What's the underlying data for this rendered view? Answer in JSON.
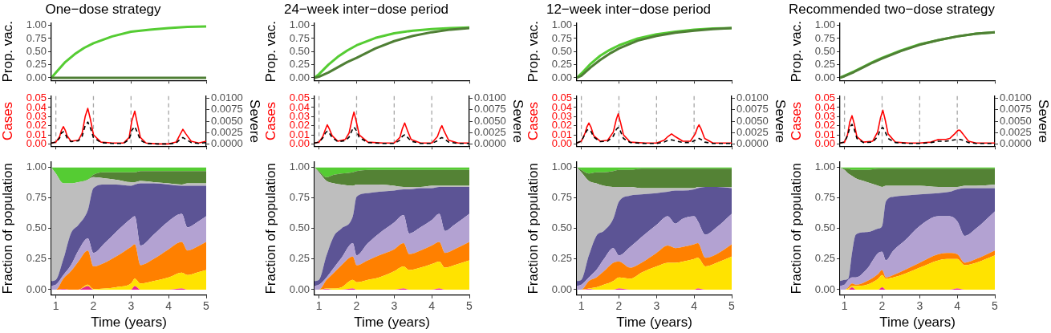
{
  "chart_data": [
    {
      "type": "line",
      "title": "One−dose strategy",
      "ylabel": "Prop. vac.",
      "x": [
        0.88,
        1,
        1.25,
        1.5,
        1.75,
        2,
        2.5,
        3,
        3.5,
        4,
        4.5,
        5
      ],
      "xlim": [
        0.88,
        5
      ],
      "xticks": [
        1,
        2,
        3,
        4,
        5
      ],
      "ylim": [
        -0.05,
        1.05
      ],
      "yticks": [
        {
          "value": 0,
          "label": "0.00"
        },
        {
          "value": 0.25,
          "label": "0.25"
        },
        {
          "value": 0.5,
          "label": "0.50"
        },
        {
          "value": 0.75,
          "label": "0.75"
        },
        {
          "value": 1,
          "label": "1.00"
        }
      ],
      "tick_labels": "y",
      "series": [
        {
          "color": "#55cc33",
          "values": [
            0,
            0.1,
            0.3,
            0.45,
            0.57,
            0.66,
            0.79,
            0.88,
            0.92,
            0.95,
            0.97,
            0.98
          ]
        },
        {
          "color": "#4f7f35",
          "values": [
            0,
            0,
            0,
            0,
            0,
            0,
            0,
            0,
            0,
            0,
            0,
            0
          ]
        }
      ]
    },
    {
      "type": "line",
      "title": "24−week inter−dose period",
      "ylabel": "Prop. vac.",
      "x": [
        0.88,
        1,
        1.25,
        1.5,
        1.75,
        2,
        2.5,
        3,
        3.5,
        4,
        4.5,
        5
      ],
      "xlim": [
        0.88,
        5
      ],
      "xticks": [
        1,
        2,
        3,
        4,
        5
      ],
      "ylim": [
        -0.05,
        1.05
      ],
      "yticks": [
        {
          "value": 0,
          "label": "0.00"
        },
        {
          "value": 0.25,
          "label": "0.25"
        },
        {
          "value": 0.5,
          "label": "0.50"
        },
        {
          "value": 0.75,
          "label": "0.75"
        },
        {
          "value": 1,
          "label": "1.00"
        }
      ],
      "tick_labels": "y",
      "series": [
        {
          "color": "#55cc33",
          "values": [
            0,
            0.07,
            0.25,
            0.4,
            0.52,
            0.62,
            0.76,
            0.85,
            0.9,
            0.93,
            0.95,
            0.96
          ]
        },
        {
          "color": "#4f7f35",
          "values": [
            0,
            0.02,
            0.1,
            0.2,
            0.3,
            0.38,
            0.56,
            0.7,
            0.8,
            0.87,
            0.92,
            0.95
          ]
        }
      ]
    },
    {
      "type": "line",
      "title": "12−week inter−dose period",
      "ylabel": "Prop. vac.",
      "x": [
        0.88,
        1,
        1.25,
        1.5,
        1.75,
        2,
        2.5,
        3,
        3.5,
        4,
        4.5,
        5
      ],
      "xlim": [
        0.88,
        5
      ],
      "xticks": [
        1,
        2,
        3,
        4,
        5
      ],
      "ylim": [
        -0.05,
        1.05
      ],
      "yticks": [
        {
          "value": 0,
          "label": "0.00"
        },
        {
          "value": 0.25,
          "label": "0.25"
        },
        {
          "value": 0.5,
          "label": "0.50"
        },
        {
          "value": 0.75,
          "label": "0.75"
        },
        {
          "value": 1,
          "label": "1.00"
        }
      ],
      "tick_labels": "y",
      "series": [
        {
          "color": "#55cc33",
          "values": [
            0,
            0.08,
            0.27,
            0.42,
            0.53,
            0.62,
            0.75,
            0.83,
            0.88,
            0.92,
            0.94,
            0.95
          ]
        },
        {
          "color": "#4f7f35",
          "values": [
            0,
            0.04,
            0.2,
            0.34,
            0.46,
            0.56,
            0.71,
            0.8,
            0.86,
            0.9,
            0.93,
            0.95
          ]
        }
      ]
    },
    {
      "type": "line",
      "title": "Recommended two−dose strategy",
      "ylabel": "Prop. vac.",
      "x": [
        0.88,
        1,
        1.25,
        1.5,
        1.75,
        2,
        2.5,
        3,
        3.5,
        4,
        4.5,
        5
      ],
      "xlim": [
        0.88,
        5
      ],
      "xticks": [
        1,
        2,
        3,
        4,
        5
      ],
      "ylim": [
        -0.05,
        1.05
      ],
      "yticks": [
        {
          "value": 0,
          "label": "0.00"
        },
        {
          "value": 0.25,
          "label": "0.25"
        },
        {
          "value": 0.5,
          "label": "0.50"
        },
        {
          "value": 0.75,
          "label": "0.75"
        },
        {
          "value": 1,
          "label": "1.00"
        }
      ],
      "tick_labels": "y",
      "series": [
        {
          "color": "#55cc33",
          "values": [
            0,
            0.04,
            0.12,
            0.21,
            0.3,
            0.38,
            0.52,
            0.64,
            0.72,
            0.79,
            0.84,
            0.87
          ]
        },
        {
          "color": "#4f7f35",
          "values": [
            0,
            0.03,
            0.11,
            0.2,
            0.29,
            0.37,
            0.51,
            0.63,
            0.72,
            0.79,
            0.84,
            0.87
          ]
        }
      ]
    },
    {
      "type": "line",
      "ylabel": "Cases",
      "y2label": "Severe",
      "xlim": [
        0.88,
        5
      ],
      "xticks": [
        1,
        2,
        3,
        4,
        5
      ],
      "ylim": [
        -0.0025,
        0.0525
      ],
      "yticks": [
        {
          "value": 0,
          "label": "0.00"
        },
        {
          "value": 0.01,
          "label": "0.01"
        },
        {
          "value": 0.02,
          "label": "0.02"
        },
        {
          "value": 0.03,
          "label": "0.03"
        },
        {
          "value": 0.04,
          "label": "0.04"
        },
        {
          "value": 0.05,
          "label": "0.05"
        }
      ],
      "y2lim": [
        -0.0005,
        0.0105
      ],
      "y2ticks": [
        {
          "value": 0,
          "label": "0.0000"
        },
        {
          "value": 0.0025,
          "label": "0.0025"
        },
        {
          "value": 0.005,
          "label": "0.0050"
        },
        {
          "value": 0.0075,
          "label": "0.0075"
        },
        {
          "value": 0.01,
          "label": "0.0100"
        }
      ],
      "tick_labels": "y",
      "ref_lines": [
        {
          "axis": "x",
          "value": 1,
          "color": "#a6a6a6",
          "line_style": "dashed"
        },
        {
          "axis": "x",
          "value": 2,
          "color": "#a6a6a6",
          "line_style": "dashed"
        },
        {
          "axis": "x",
          "value": 3,
          "color": "#a6a6a6",
          "line_style": "dashed"
        },
        {
          "axis": "x",
          "value": 4,
          "color": "#a6a6a6",
          "line_style": "dashed"
        }
      ],
      "x": [
        0.88,
        1.0,
        1.1,
        1.15,
        1.2,
        1.25,
        1.3,
        1.4,
        1.6,
        1.7,
        1.78,
        1.85,
        1.92,
        2.0,
        2.2,
        2.5,
        2.8,
        2.95,
        3.02,
        3.1,
        3.17,
        3.25,
        3.4,
        3.7,
        4.0,
        4.2,
        4.3,
        4.38,
        4.46,
        4.6,
        4.8,
        5.0
      ],
      "series": [
        {
          "color": "#ff0000",
          "values": [
            0.001,
            0.002,
            0.008,
            0.015,
            0.019,
            0.015,
            0.009,
            0.003,
            0.004,
            0.012,
            0.03,
            0.039,
            0.027,
            0.01,
            0.002,
            0.001,
            0.001,
            0.007,
            0.025,
            0.036,
            0.022,
            0.007,
            0.001,
            0,
            0,
            0.002,
            0.01,
            0.016,
            0.011,
            0.003,
            0.001,
            0.003
          ]
        },
        {
          "color": "#000000",
          "axis": "y2",
          "line_style": "dashed",
          "values": [
            0.0002,
            0.0004,
            0.0013,
            0.0024,
            0.0027,
            0.0022,
            0.0013,
            0.0005,
            0.0007,
            0.0017,
            0.004,
            0.0048,
            0.0035,
            0.0014,
            0.0003,
            0.0001,
            0.0001,
            0.001,
            0.003,
            0.0038,
            0.0025,
            0.0008,
            0.0001,
            0,
            0,
            0.0002,
            0.001,
            0.0014,
            0.001,
            0.0003,
            0.0001,
            0.0003
          ]
        }
      ]
    },
    {
      "type": "line",
      "ylabel": "Cases",
      "y2label": "Severe",
      "xlim": [
        0.88,
        5
      ],
      "xticks": [
        1,
        2,
        3,
        4,
        5
      ],
      "ylim": [
        -0.0025,
        0.0525
      ],
      "yticks": [
        {
          "value": 0,
          "label": "0.00"
        },
        {
          "value": 0.01,
          "label": "0.01"
        },
        {
          "value": 0.02,
          "label": "0.02"
        },
        {
          "value": 0.03,
          "label": "0.03"
        },
        {
          "value": 0.04,
          "label": "0.04"
        },
        {
          "value": 0.05,
          "label": "0.05"
        }
      ],
      "y2lim": [
        -0.0005,
        0.0105
      ],
      "y2ticks": [
        {
          "value": 0,
          "label": "0.0000"
        },
        {
          "value": 0.0025,
          "label": "0.0025"
        },
        {
          "value": 0.005,
          "label": "0.0050"
        },
        {
          "value": 0.0075,
          "label": "0.0075"
        },
        {
          "value": 0.01,
          "label": "0.0100"
        }
      ],
      "tick_labels": "y",
      "ref_lines": [
        {
          "axis": "x",
          "value": 1,
          "color": "#a6a6a6",
          "line_style": "dashed"
        },
        {
          "axis": "x",
          "value": 2,
          "color": "#a6a6a6",
          "line_style": "dashed"
        },
        {
          "axis": "x",
          "value": 3,
          "color": "#a6a6a6",
          "line_style": "dashed"
        },
        {
          "axis": "x",
          "value": 4,
          "color": "#a6a6a6",
          "line_style": "dashed"
        }
      ],
      "x": [
        0.88,
        1.0,
        1.1,
        1.17,
        1.22,
        1.28,
        1.35,
        1.5,
        1.7,
        1.8,
        1.88,
        1.93,
        1.99,
        2.07,
        2.3,
        2.7,
        3.0,
        3.15,
        3.22,
        3.28,
        3.35,
        3.45,
        3.7,
        4.0,
        4.15,
        4.22,
        4.27,
        4.33,
        4.45,
        4.7,
        5.0
      ],
      "series": [
        {
          "color": "#ff0000",
          "values": [
            0.001,
            0.002,
            0.008,
            0.016,
            0.021,
            0.016,
            0.009,
            0.003,
            0.005,
            0.012,
            0.027,
            0.035,
            0.025,
            0.01,
            0.002,
            0.001,
            0.001,
            0.007,
            0.017,
            0.023,
            0.015,
            0.005,
            0.001,
            0.001,
            0.008,
            0.016,
            0.02,
            0.014,
            0.004,
            0.001,
            0.001
          ]
        },
        {
          "color": "#000000",
          "axis": "y2",
          "line_style": "dashed",
          "values": [
            0.0002,
            0.0004,
            0.0013,
            0.0024,
            0.0028,
            0.0023,
            0.0014,
            0.0005,
            0.0007,
            0.0015,
            0.003,
            0.0037,
            0.003,
            0.0014,
            0.0003,
            0.0001,
            0.0001,
            0.0008,
            0.0017,
            0.002,
            0.0015,
            0.0006,
            0.0001,
            0.0001,
            0.0007,
            0.0012,
            0.0014,
            0.0011,
            0.0004,
            0.0001,
            0.0001
          ]
        }
      ]
    },
    {
      "type": "line",
      "ylabel": "Cases",
      "y2label": "Severe",
      "xlim": [
        0.88,
        5
      ],
      "xticks": [
        1,
        2,
        3,
        4,
        5
      ],
      "ylim": [
        -0.0025,
        0.0525
      ],
      "yticks": [
        {
          "value": 0,
          "label": "0.00"
        },
        {
          "value": 0.01,
          "label": "0.01"
        },
        {
          "value": 0.02,
          "label": "0.02"
        },
        {
          "value": 0.03,
          "label": "0.03"
        },
        {
          "value": 0.04,
          "label": "0.04"
        },
        {
          "value": 0.05,
          "label": "0.05"
        }
      ],
      "y2lim": [
        -0.0005,
        0.0105
      ],
      "y2ticks": [
        {
          "value": 0,
          "label": "0.0000"
        },
        {
          "value": 0.0025,
          "label": "0.0025"
        },
        {
          "value": 0.005,
          "label": "0.0050"
        },
        {
          "value": 0.0075,
          "label": "0.0075"
        },
        {
          "value": 0.01,
          "label": "0.0100"
        }
      ],
      "tick_labels": "y",
      "ref_lines": [
        {
          "axis": "x",
          "value": 1,
          "color": "#a6a6a6",
          "line_style": "dashed"
        },
        {
          "axis": "x",
          "value": 2,
          "color": "#a6a6a6",
          "line_style": "dashed"
        },
        {
          "axis": "x",
          "value": 3,
          "color": "#a6a6a6",
          "line_style": "dashed"
        },
        {
          "axis": "x",
          "value": 4,
          "color": "#a6a6a6",
          "line_style": "dashed"
        }
      ],
      "x": [
        0.88,
        1.0,
        1.1,
        1.15,
        1.2,
        1.26,
        1.33,
        1.5,
        1.7,
        1.85,
        1.93,
        1.98,
        2.04,
        2.12,
        2.3,
        2.7,
        3.0,
        3.2,
        3.3,
        3.4,
        3.5,
        3.7,
        3.9,
        4.03,
        4.09,
        4.13,
        4.18,
        4.28,
        4.5,
        4.8,
        5.0
      ],
      "series": [
        {
          "color": "#ff0000",
          "values": [
            0.001,
            0.003,
            0.012,
            0.019,
            0.023,
            0.018,
            0.009,
            0.003,
            0.004,
            0.013,
            0.027,
            0.033,
            0.024,
            0.01,
            0.002,
            0.001,
            0.001,
            0.004,
            0.008,
            0.011,
            0.008,
            0.003,
            0.003,
            0.011,
            0.018,
            0.021,
            0.017,
            0.006,
            0.001,
            0.001,
            0.001
          ]
        },
        {
          "color": "#000000",
          "axis": "y2",
          "line_style": "dashed",
          "values": [
            0.0002,
            0.0006,
            0.0022,
            0.003,
            0.0032,
            0.0027,
            0.0015,
            0.0005,
            0.0006,
            0.0017,
            0.0032,
            0.0036,
            0.0028,
            0.0012,
            0.0003,
            0.0001,
            0.0001,
            0.0004,
            0.0008,
            0.0009,
            0.0007,
            0.0003,
            0.0003,
            0.0008,
            0.0011,
            0.0012,
            0.001,
            0.0004,
            0.0001,
            0.0001,
            0.0001
          ]
        }
      ]
    },
    {
      "type": "line",
      "ylabel": "Cases",
      "y2label": "Severe",
      "xlim": [
        0.88,
        5
      ],
      "xticks": [
        1,
        2,
        3,
        4,
        5
      ],
      "ylim": [
        -0.0025,
        0.0525
      ],
      "yticks": [
        {
          "value": 0,
          "label": "0.00"
        },
        {
          "value": 0.01,
          "label": "0.01"
        },
        {
          "value": 0.02,
          "label": "0.02"
        },
        {
          "value": 0.03,
          "label": "0.03"
        },
        {
          "value": 0.04,
          "label": "0.04"
        },
        {
          "value": 0.05,
          "label": "0.05"
        }
      ],
      "y2lim": [
        -0.0005,
        0.0105
      ],
      "y2ticks": [
        {
          "value": 0,
          "label": "0.0000"
        },
        {
          "value": 0.0025,
          "label": "0.0025"
        },
        {
          "value": 0.005,
          "label": "0.0050"
        },
        {
          "value": 0.0075,
          "label": "0.0075"
        },
        {
          "value": 0.01,
          "label": "0.0100"
        }
      ],
      "tick_labels": "y",
      "ref_lines": [
        {
          "axis": "x",
          "value": 1,
          "color": "#a6a6a6",
          "line_style": "dashed"
        },
        {
          "axis": "x",
          "value": 2,
          "color": "#a6a6a6",
          "line_style": "dashed"
        },
        {
          "axis": "x",
          "value": 3,
          "color": "#a6a6a6",
          "line_style": "dashed"
        },
        {
          "axis": "x",
          "value": 4,
          "color": "#a6a6a6",
          "line_style": "dashed"
        }
      ],
      "x": [
        0.88,
        1.0,
        1.08,
        1.14,
        1.2,
        1.26,
        1.33,
        1.5,
        1.75,
        1.88,
        1.96,
        2.02,
        2.08,
        2.16,
        2.35,
        2.7,
        3.0,
        3.3,
        3.5,
        3.7,
        3.8,
        3.93,
        4.02,
        4.07,
        4.15,
        4.3,
        4.5,
        4.8,
        5.0
      ],
      "series": [
        {
          "color": "#ff0000",
          "values": [
            0.001,
            0.002,
            0.01,
            0.024,
            0.031,
            0.022,
            0.008,
            0.002,
            0.003,
            0.013,
            0.029,
            0.037,
            0.027,
            0.011,
            0.002,
            0.001,
            0.001,
            0.002,
            0.005,
            0.005,
            0.006,
            0.011,
            0.015,
            0.015,
            0.011,
            0.003,
            0.001,
            0.001,
            0.001
          ]
        },
        {
          "color": "#000000",
          "axis": "y2",
          "line_style": "dashed",
          "values": [
            0.0002,
            0.0004,
            0.0018,
            0.0036,
            0.0043,
            0.0032,
            0.0012,
            0.0003,
            0.0004,
            0.0016,
            0.0033,
            0.0036,
            0.0027,
            0.0012,
            0.0003,
            0.0001,
            0.0001,
            0.0003,
            0.0006,
            0.0006,
            0.0007,
            0.0009,
            0.001,
            0.001,
            0.0008,
            0.0003,
            0.0001,
            0.0001,
            0.0001
          ]
        }
      ]
    },
    {
      "type": "area",
      "stacked": true,
      "xlabel": "Time (years)",
      "ylabel": "Fraction of population",
      "xlim": [
        0.88,
        5
      ],
      "xticks": [
        1,
        2,
        3,
        4,
        5
      ],
      "ylim": [
        -0.045,
        1.045
      ],
      "yticks": [
        {
          "value": 0,
          "label": "0.00"
        },
        {
          "value": 0.25,
          "label": "0.25"
        },
        {
          "value": 0.5,
          "label": "0.50"
        },
        {
          "value": 0.75,
          "label": "0.75"
        },
        {
          "value": 1,
          "label": "1.00"
        }
      ],
      "x": [
        0.88,
        1.0,
        1.2,
        1.4,
        1.6,
        1.85,
        2.0,
        2.3,
        2.6,
        3.0,
        3.1,
        3.25,
        3.6,
        4.0,
        4.35,
        4.5,
        4.75,
        5.0
      ],
      "series": [
        {
          "color": "#e7298a",
          "values": [
            0,
            0,
            0.005,
            0,
            0,
            0.03,
            0,
            0,
            0,
            0,
            0.03,
            0,
            0,
            0,
            0.01,
            0,
            0,
            0
          ]
        },
        {
          "color": "#ffe300",
          "values": [
            0,
            0,
            0,
            0,
            0,
            0.01,
            0.005,
            0.01,
            0.02,
            0.05,
            0.06,
            0.05,
            0.07,
            0.1,
            0.13,
            0.12,
            0.14,
            0.16
          ]
        },
        {
          "color": "#ff8000",
          "values": [
            0,
            0,
            0.085,
            0.15,
            0.23,
            0.28,
            0.185,
            0.21,
            0.25,
            0.3,
            0.28,
            0.15,
            0.18,
            0.23,
            0.25,
            0.2,
            0.21,
            0.23
          ]
        },
        {
          "color": "#b3a2d2",
          "values": [
            0.03,
            0.04,
            0.03,
            0.05,
            0.09,
            0.1,
            0.11,
            0.16,
            0.2,
            0.23,
            0.23,
            0.16,
            0.2,
            0.23,
            0.23,
            0.19,
            0.2,
            0.21
          ]
        },
        {
          "color": "#5c5495",
          "values": [
            0.04,
            0.04,
            0.13,
            0.26,
            0.21,
            0.23,
            0.53,
            0.48,
            0.39,
            0.27,
            0.26,
            0.51,
            0.42,
            0.3,
            0.23,
            0.34,
            0.3,
            0.25
          ]
        },
        {
          "color": "#bebebe",
          "values": [
            0.93,
            0.87,
            0.62,
            0.41,
            0.35,
            0.25,
            0.09,
            0.05,
            0.04,
            0.03,
            0.02,
            0.02,
            0.01,
            0.01,
            0.01,
            0.02,
            0.02,
            0.02
          ]
        },
        {
          "color": "#548235",
          "values": [
            0,
            0,
            0,
            0,
            0,
            0,
            0.02,
            0.05,
            0.06,
            0.08,
            0.08,
            0.08,
            0.09,
            0.1,
            0.11,
            0.1,
            0.1,
            0.1
          ]
        },
        {
          "color": "#55cc33",
          "values": [
            0,
            0.05,
            0.13,
            0.13,
            0.12,
            0.1,
            0.06,
            0.04,
            0.04,
            0.04,
            0.04,
            0.03,
            0.03,
            0.03,
            0.03,
            0.03,
            0.03,
            0.03
          ]
        }
      ]
    },
    {
      "type": "area",
      "stacked": true,
      "xlabel": "Time (years)",
      "ylabel": "Fraction of population",
      "xlim": [
        0.88,
        5
      ],
      "xticks": [
        1,
        2,
        3,
        4,
        5
      ],
      "ylim": [
        -0.045,
        1.045
      ],
      "yticks": [
        {
          "value": 0,
          "label": "0.00"
        },
        {
          "value": 0.25,
          "label": "0.25"
        },
        {
          "value": 0.5,
          "label": "0.50"
        },
        {
          "value": 0.75,
          "label": "0.75"
        },
        {
          "value": 1,
          "label": "1.00"
        }
      ],
      "x": [
        0.88,
        1.0,
        1.2,
        1.4,
        1.6,
        1.9,
        2.0,
        2.3,
        2.6,
        3.0,
        3.25,
        3.4,
        3.7,
        4.0,
        4.2,
        4.35,
        4.6,
        5.0
      ],
      "series": [
        {
          "color": "#e7298a",
          "values": [
            0,
            0,
            0.005,
            0,
            0,
            0.01,
            0,
            0,
            0,
            0,
            0.01,
            0,
            0,
            0,
            0.01,
            0,
            0,
            0
          ]
        },
        {
          "color": "#ffe300",
          "values": [
            0,
            0,
            0.005,
            0.01,
            0.02,
            0.07,
            0.06,
            0.08,
            0.1,
            0.15,
            0.18,
            0.16,
            0.18,
            0.21,
            0.22,
            0.18,
            0.2,
            0.24
          ]
        },
        {
          "color": "#ff8000",
          "values": [
            0,
            0,
            0.07,
            0.13,
            0.18,
            0.19,
            0.14,
            0.16,
            0.18,
            0.18,
            0.19,
            0.13,
            0.14,
            0.15,
            0.16,
            0.12,
            0.13,
            0.15
          ]
        },
        {
          "color": "#b3a2d2",
          "values": [
            0.03,
            0.04,
            0.02,
            0.04,
            0.06,
            0.11,
            0.08,
            0.14,
            0.18,
            0.22,
            0.23,
            0.17,
            0.19,
            0.21,
            0.23,
            0.18,
            0.2,
            0.23
          ]
        },
        {
          "color": "#5c5495",
          "values": [
            0.04,
            0.04,
            0.18,
            0.26,
            0.24,
            0.22,
            0.48,
            0.41,
            0.34,
            0.26,
            0.21,
            0.36,
            0.32,
            0.26,
            0.22,
            0.36,
            0.31,
            0.22
          ]
        },
        {
          "color": "#bebebe",
          "values": [
            0.93,
            0.88,
            0.61,
            0.43,
            0.36,
            0.25,
            0.1,
            0.07,
            0.06,
            0.04,
            0.02,
            0.02,
            0.01,
            0.02,
            0.01,
            0.01,
            0.01,
            0.01
          ]
        },
        {
          "color": "#548235",
          "values": [
            0,
            0.01,
            0.03,
            0.07,
            0.09,
            0.11,
            0.11,
            0.12,
            0.12,
            0.13,
            0.14,
            0.14,
            0.14,
            0.13,
            0.13,
            0.13,
            0.13,
            0.13
          ]
        },
        {
          "color": "#55cc33",
          "values": [
            0,
            0.03,
            0.08,
            0.06,
            0.05,
            0.04,
            0.03,
            0.02,
            0.02,
            0.02,
            0.02,
            0.02,
            0.02,
            0.02,
            0.02,
            0.02,
            0.02,
            0.02
          ]
        }
      ]
    },
    {
      "type": "area",
      "stacked": true,
      "xlabel": "Time (years)",
      "ylabel": "Fraction of population",
      "xlim": [
        0.88,
        5
      ],
      "xticks": [
        1,
        2,
        3,
        4,
        5
      ],
      "ylim": [
        -0.045,
        1.045
      ],
      "yticks": [
        {
          "value": 0,
          "label": "0.00"
        },
        {
          "value": 0.25,
          "label": "0.25"
        },
        {
          "value": 0.5,
          "label": "0.50"
        },
        {
          "value": 0.75,
          "label": "0.75"
        },
        {
          "value": 1,
          "label": "1.00"
        }
      ],
      "x": [
        0.88,
        1.0,
        1.2,
        1.4,
        1.6,
        1.85,
        2.0,
        2.3,
        2.6,
        3.0,
        3.3,
        3.5,
        3.7,
        4.0,
        4.1,
        4.3,
        4.6,
        5.0
      ],
      "series": [
        {
          "color": "#e7298a",
          "values": [
            0,
            0,
            0.005,
            0,
            0,
            0,
            0.01,
            0,
            0,
            0,
            0,
            0,
            0,
            0,
            0.01,
            0,
            0,
            0
          ]
        },
        {
          "color": "#ffe300",
          "values": [
            0,
            0,
            0.005,
            0.02,
            0.04,
            0.07,
            0.09,
            0.09,
            0.14,
            0.19,
            0.22,
            0.22,
            0.23,
            0.25,
            0.25,
            0.19,
            0.22,
            0.27
          ]
        },
        {
          "color": "#ff8000",
          "values": [
            0,
            0,
            0.06,
            0.08,
            0.11,
            0.15,
            0.13,
            0.09,
            0.08,
            0.11,
            0.14,
            0.12,
            0.12,
            0.12,
            0.12,
            0.07,
            0.07,
            0.1
          ]
        },
        {
          "color": "#b3a2d2",
          "values": [
            0.03,
            0.04,
            0.03,
            0.06,
            0.1,
            0.12,
            0.05,
            0.17,
            0.21,
            0.23,
            0.24,
            0.2,
            0.23,
            0.23,
            0.18,
            0.19,
            0.22,
            0.25
          ]
        },
        {
          "color": "#5c5495",
          "values": [
            0.04,
            0.04,
            0.18,
            0.28,
            0.23,
            0.24,
            0.44,
            0.42,
            0.35,
            0.26,
            0.2,
            0.27,
            0.23,
            0.22,
            0.27,
            0.39,
            0.33,
            0.21
          ]
        },
        {
          "color": "#bebebe",
          "values": [
            0.93,
            0.88,
            0.61,
            0.43,
            0.37,
            0.26,
            0.12,
            0.07,
            0.05,
            0.04,
            0.03,
            0.02,
            0.02,
            0.01,
            0.01,
            0,
            0,
            0.01
          ]
        },
        {
          "color": "#548235",
          "values": [
            0,
            0.02,
            0.06,
            0.09,
            0.11,
            0.13,
            0.14,
            0.14,
            0.16,
            0.16,
            0.16,
            0.16,
            0.16,
            0.16,
            0.15,
            0.15,
            0.15,
            0.15
          ]
        },
        {
          "color": "#55cc33",
          "values": [
            0,
            0.02,
            0.05,
            0.04,
            0.04,
            0.03,
            0.02,
            0.02,
            0.01,
            0.01,
            0.01,
            0.01,
            0.01,
            0.01,
            0.01,
            0.01,
            0.01,
            0.01
          ]
        }
      ]
    },
    {
      "type": "area",
      "stacked": true,
      "xlabel": "Time (years)",
      "ylabel": "Fraction of population",
      "xlim": [
        0.88,
        5
      ],
      "xticks": [
        1,
        2,
        3,
        4,
        5
      ],
      "ylim": [
        -0.045,
        1.045
      ],
      "yticks": [
        {
          "value": 0,
          "label": "0.00"
        },
        {
          "value": 0.25,
          "label": "0.25"
        },
        {
          "value": 0.5,
          "label": "0.50"
        },
        {
          "value": 0.75,
          "label": "0.75"
        },
        {
          "value": 1,
          "label": "1.00"
        }
      ],
      "x": [
        0.88,
        1.0,
        1.1,
        1.2,
        1.3,
        1.6,
        1.9,
        2.0,
        2.1,
        2.3,
        2.6,
        3.0,
        3.5,
        3.8,
        4.0,
        4.2,
        4.5,
        5.0
      ],
      "series": [
        {
          "color": "#e7298a",
          "values": [
            0,
            0,
            0,
            0.02,
            0,
            0,
            0,
            0.02,
            0,
            0,
            0,
            0,
            0,
            0,
            0.01,
            0,
            0,
            0
          ]
        },
        {
          "color": "#ffe300",
          "values": [
            0,
            0,
            0.01,
            0.01,
            0.03,
            0.04,
            0.09,
            0.1,
            0.09,
            0.1,
            0.13,
            0.18,
            0.24,
            0.25,
            0.24,
            0.2,
            0.22,
            0.28
          ]
        },
        {
          "color": "#ff8000",
          "values": [
            0,
            0,
            0.01,
            0.02,
            0.01,
            0.03,
            0.04,
            0.04,
            0.01,
            0.02,
            0.03,
            0.04,
            0.05,
            0.05,
            0.04,
            0.02,
            0.03,
            0.04
          ]
        },
        {
          "color": "#b3a2d2",
          "values": [
            0.03,
            0.04,
            0.06,
            0.05,
            0.06,
            0.1,
            0.17,
            0.15,
            0.14,
            0.2,
            0.24,
            0.3,
            0.31,
            0.3,
            0.27,
            0.22,
            0.25,
            0.32
          ]
        },
        {
          "color": "#5c5495",
          "values": [
            0.04,
            0.04,
            0.01,
            0.2,
            0.35,
            0.3,
            0.2,
            0.21,
            0.48,
            0.44,
            0.37,
            0.26,
            0.19,
            0.2,
            0.26,
            0.39,
            0.33,
            0.19
          ]
        },
        {
          "color": "#bebebe",
          "values": [
            0.93,
            0.9,
            0.86,
            0.63,
            0.46,
            0.41,
            0.35,
            0.32,
            0.13,
            0.09,
            0.08,
            0.07,
            0.05,
            0.04,
            0.02,
            0.02,
            0.02,
            0.03
          ]
        },
        {
          "color": "#548235",
          "values": [
            0,
            0.01,
            0.04,
            0.05,
            0.07,
            0.1,
            0.14,
            0.15,
            0.14,
            0.14,
            0.14,
            0.14,
            0.15,
            0.15,
            0.15,
            0.14,
            0.14,
            0.13
          ]
        },
        {
          "color": "#55cc33",
          "values": [
            0,
            0.01,
            0.01,
            0.02,
            0.02,
            0.02,
            0.01,
            0.01,
            0.01,
            0.01,
            0.01,
            0.01,
            0.01,
            0.01,
            0.01,
            0.01,
            0.01,
            0.01
          ]
        }
      ]
    }
  ]
}
